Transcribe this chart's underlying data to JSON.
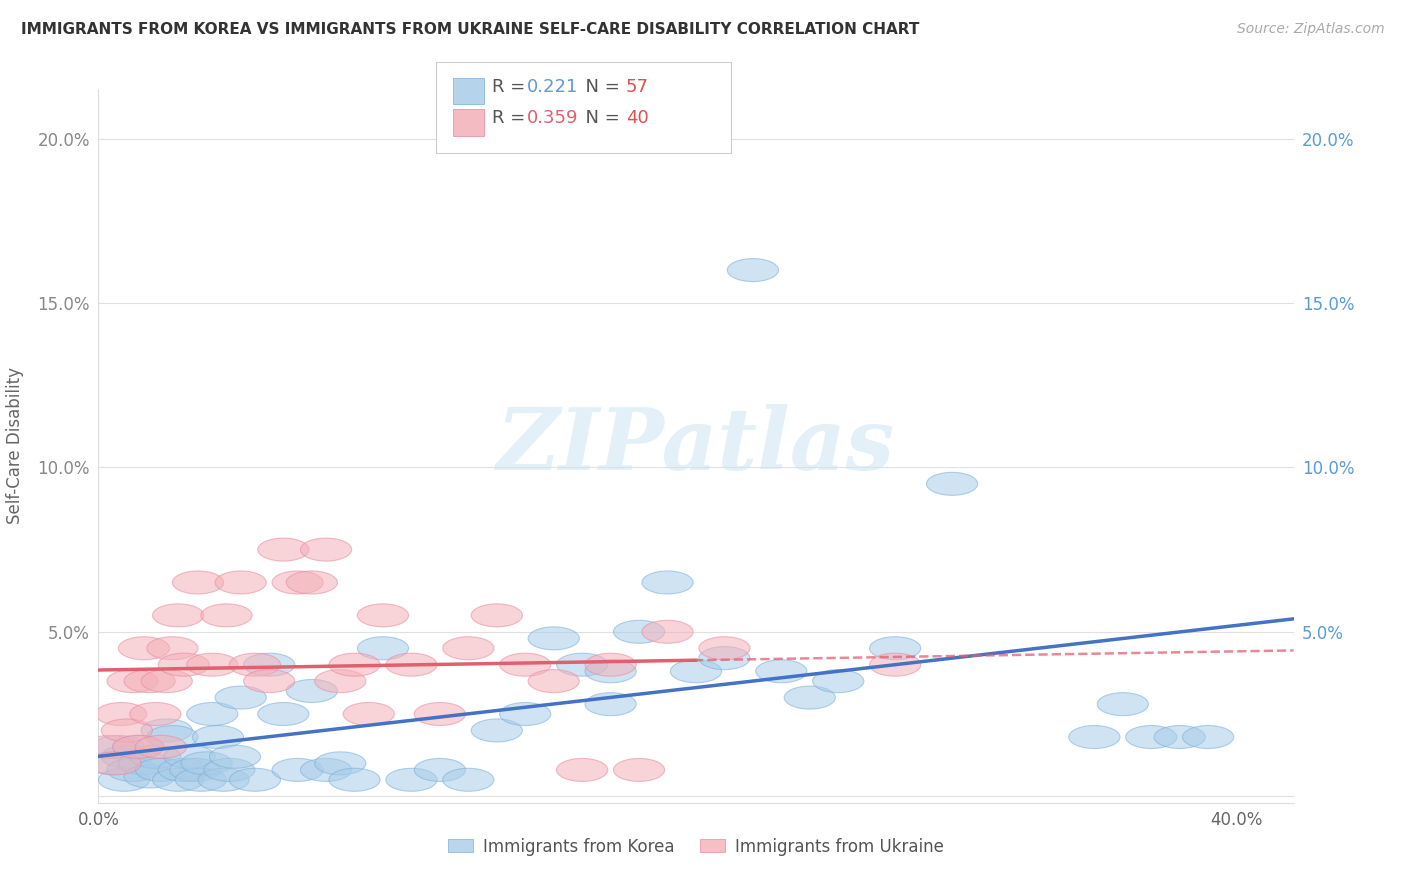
{
  "title": "IMMIGRANTS FROM KOREA VS IMMIGRANTS FROM UKRAINE SELF-CARE DISABILITY CORRELATION CHART",
  "source": "Source: ZipAtlas.com",
  "ylabel": "Self-Care Disability",
  "xlim": [
    0.0,
    0.42
  ],
  "ylim": [
    -0.002,
    0.215
  ],
  "xticks": [
    0.0,
    0.1,
    0.2,
    0.3,
    0.4
  ],
  "yticks": [
    0.0,
    0.05,
    0.1,
    0.15,
    0.2
  ],
  "xtick_labels": [
    "0.0%",
    "",
    "",
    "",
    "40.0%"
  ],
  "ytick_labels_left": [
    "",
    "5.0%",
    "10.0%",
    "15.0%",
    "20.0%"
  ],
  "ytick_labels_right": [
    "",
    "5.0%",
    "10.0%",
    "15.0%",
    "20.0%"
  ],
  "korea_color": "#a8cce8",
  "korea_edge_color": "#7aaed8",
  "ukraine_color": "#f4b0b8",
  "ukraine_edge_color": "#e888a0",
  "korea_line_color": "#4472c4",
  "ukraine_line_color": "#e06070",
  "korea_R": "0.221",
  "korea_N": "57",
  "ukraine_R": "0.359",
  "ukraine_N": "40",
  "watermark": "ZIPatlas",
  "legend_R_color": "#555555",
  "legend_N_korea_color": "#e05050",
  "legend_N_ukraine_color": "#e05050",
  "legend_val_korea_color": "#5b9bd5",
  "legend_val_ukraine_color": "#e06070",
  "korea_x": [
    0.005,
    0.007,
    0.009,
    0.01,
    0.012,
    0.014,
    0.016,
    0.018,
    0.02,
    0.022,
    0.024,
    0.026,
    0.028,
    0.03,
    0.032,
    0.034,
    0.036,
    0.038,
    0.04,
    0.042,
    0.044,
    0.046,
    0.048,
    0.05,
    0.055,
    0.06,
    0.065,
    0.07,
    0.075,
    0.08,
    0.085,
    0.09,
    0.1,
    0.11,
    0.12,
    0.13,
    0.14,
    0.15,
    0.16,
    0.17,
    0.18,
    0.19,
    0.2,
    0.21,
    0.22,
    0.23,
    0.28,
    0.3,
    0.35,
    0.36,
    0.37,
    0.38,
    0.39,
    0.18,
    0.24,
    0.25,
    0.26
  ],
  "korea_y": [
    0.01,
    0.015,
    0.005,
    0.012,
    0.008,
    0.015,
    0.01,
    0.006,
    0.012,
    0.008,
    0.02,
    0.018,
    0.005,
    0.008,
    0.012,
    0.008,
    0.005,
    0.01,
    0.025,
    0.018,
    0.005,
    0.008,
    0.012,
    0.03,
    0.005,
    0.04,
    0.025,
    0.008,
    0.032,
    0.008,
    0.01,
    0.005,
    0.045,
    0.005,
    0.008,
    0.005,
    0.02,
    0.025,
    0.048,
    0.04,
    0.038,
    0.05,
    0.065,
    0.038,
    0.042,
    0.16,
    0.045,
    0.095,
    0.018,
    0.028,
    0.018,
    0.018,
    0.018,
    0.028,
    0.038,
    0.03,
    0.035
  ],
  "ukraine_x": [
    0.004,
    0.006,
    0.008,
    0.01,
    0.012,
    0.014,
    0.016,
    0.018,
    0.02,
    0.022,
    0.024,
    0.026,
    0.028,
    0.03,
    0.035,
    0.04,
    0.045,
    0.05,
    0.055,
    0.06,
    0.065,
    0.07,
    0.075,
    0.08,
    0.085,
    0.09,
    0.095,
    0.1,
    0.11,
    0.12,
    0.13,
    0.14,
    0.15,
    0.16,
    0.17,
    0.18,
    0.19,
    0.2,
    0.22,
    0.28
  ],
  "ukraine_y": [
    0.015,
    0.01,
    0.025,
    0.02,
    0.035,
    0.015,
    0.045,
    0.035,
    0.025,
    0.015,
    0.035,
    0.045,
    0.055,
    0.04,
    0.065,
    0.04,
    0.055,
    0.065,
    0.04,
    0.035,
    0.075,
    0.065,
    0.065,
    0.075,
    0.035,
    0.04,
    0.025,
    0.055,
    0.04,
    0.025,
    0.045,
    0.055,
    0.04,
    0.035,
    0.008,
    0.04,
    0.008,
    0.05,
    0.045,
    0.04
  ]
}
